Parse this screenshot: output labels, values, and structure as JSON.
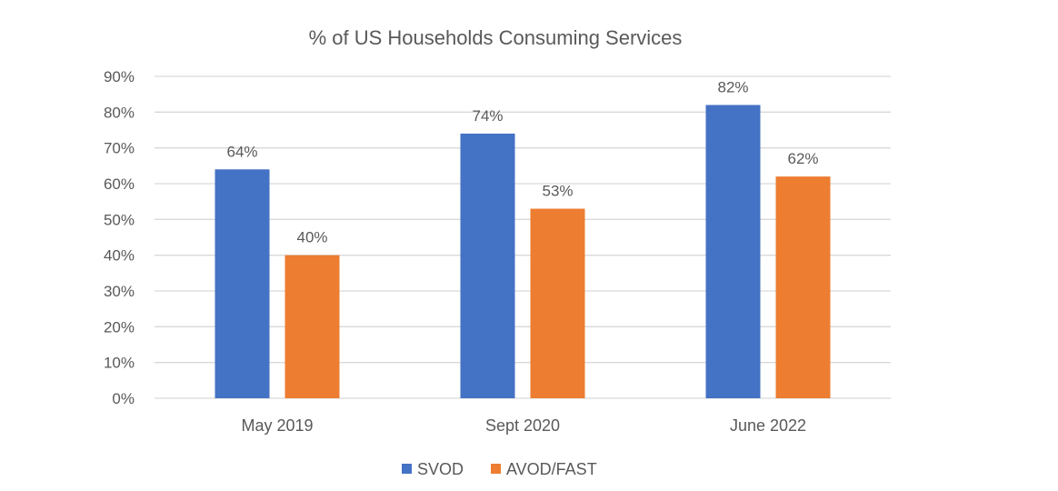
{
  "chart_data": {
    "type": "bar",
    "title": "% of US Households Consuming Services",
    "xlabel": "",
    "ylabel": "",
    "categories": [
      "May 2019",
      "Sept 2020",
      "June 2022"
    ],
    "series": [
      {
        "name": "SVOD",
        "color": "#4472c4",
        "values": [
          64,
          74,
          82
        ],
        "labels": [
          "64%",
          "74%",
          "82%"
        ]
      },
      {
        "name": "AVOD/FAST",
        "color": "#ed7d31",
        "values": [
          40,
          53,
          62
        ],
        "labels": [
          "40%",
          "53%",
          "62%"
        ]
      }
    ],
    "ylim": [
      0,
      90
    ],
    "yticks": [
      0,
      10,
      20,
      30,
      40,
      50,
      60,
      70,
      80,
      90
    ],
    "ytick_labels": [
      "0%",
      "10%",
      "20%",
      "30%",
      "40%",
      "50%",
      "60%",
      "70%",
      "80%",
      "90%"
    ],
    "grid": true,
    "legend": "bottom-center"
  }
}
